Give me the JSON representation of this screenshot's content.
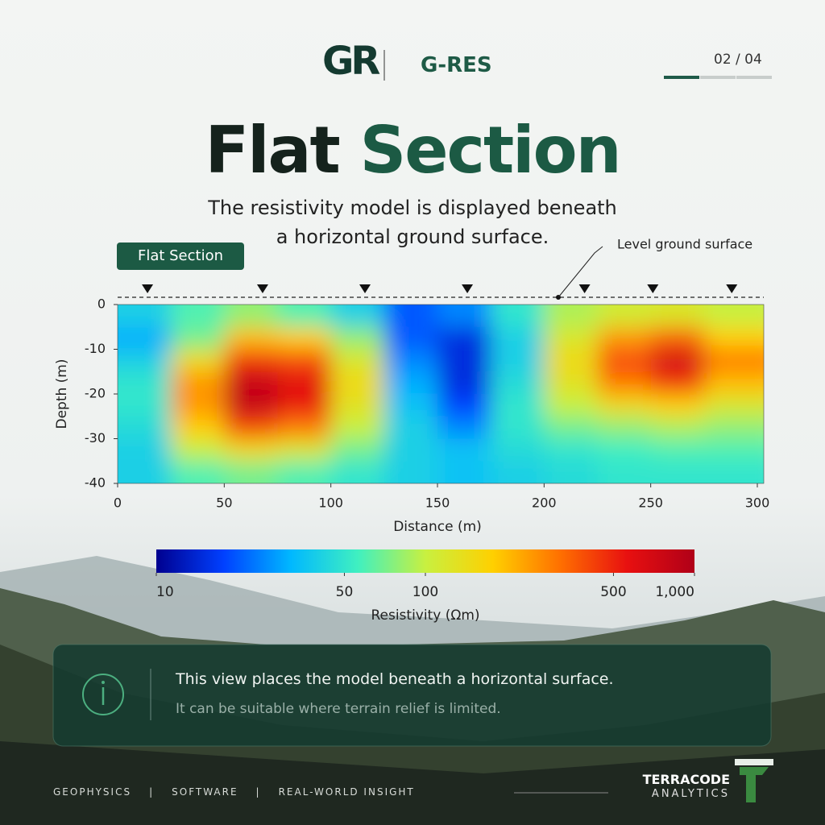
{
  "brand": {
    "logo_mark": "GR",
    "name": "G-RES"
  },
  "pager": "02 / 04",
  "header": {
    "title_dark": "Flat",
    "title_accent": "Section",
    "subtitle_lines": [
      "The resistivity model is displayed beneath",
      "a horizontal ground surface."
    ]
  },
  "badge": "Flat Section",
  "chart_data": {
    "type": "heatmap",
    "annotation": "Level ground surface",
    "x_label": "Distance (m)",
    "y_label": "Depth (m)",
    "xlim": [
      0,
      300
    ],
    "ylim": [
      -40,
      0
    ],
    "xticks": [
      0,
      50,
      100,
      150,
      200,
      250,
      300
    ],
    "yticks": [
      0,
      -10,
      -20,
      -30,
      -40
    ],
    "x": [
      12.5,
      37.5,
      62.5,
      87.5,
      112.5,
      137.5,
      162.5,
      187.5,
      212.5,
      237.5,
      262.5,
      287.5
    ],
    "y": [
      -2.5,
      -7.5,
      -12.5,
      -17.5,
      -22.5,
      -27.5,
      -32.5,
      -37.5
    ],
    "z": [
      [
        40,
        60,
        80,
        60,
        40,
        20,
        25,
        50,
        90,
        110,
        120,
        100
      ],
      [
        30,
        70,
        200,
        180,
        80,
        20,
        15,
        40,
        120,
        250,
        350,
        180
      ],
      [
        40,
        150,
        450,
        400,
        120,
        25,
        15,
        40,
        150,
        400,
        700,
        300
      ],
      [
        50,
        250,
        800,
        600,
        150,
        30,
        15,
        45,
        130,
        300,
        450,
        200
      ],
      [
        50,
        250,
        800,
        550,
        130,
        35,
        18,
        50,
        100,
        150,
        180,
        120
      ],
      [
        45,
        180,
        400,
        300,
        100,
        40,
        25,
        50,
        70,
        80,
        90,
        80
      ],
      [
        40,
        100,
        150,
        120,
        70,
        40,
        35,
        45,
        50,
        55,
        60,
        60
      ],
      [
        40,
        60,
        70,
        60,
        50,
        40,
        35,
        40,
        45,
        50,
        50,
        50
      ]
    ],
    "electrodes": [
      14,
      68,
      116,
      164,
      219,
      251,
      288
    ],
    "colorbar": {
      "label": "Resistivity (Ωm)",
      "lim": [
        10,
        1000
      ],
      "log": true,
      "ticks": [
        10,
        50,
        100,
        500,
        {
          "value": 1000,
          "label": "1,000"
        }
      ],
      "colors": [
        "#00008f",
        "#0040ff",
        "#00b8ff",
        "#40f0c0",
        "#c8f040",
        "#ffd000",
        "#ff7000",
        "#e81010",
        "#b00018"
      ]
    }
  },
  "info": {
    "line1": "This view places the model beneath a horizontal surface.",
    "line2": "It can be suitable where terrain relief is limited."
  },
  "footer": {
    "tags": [
      "GEOPHYSICS",
      "SOFTWARE",
      "REAL-WORLD INSIGHT"
    ],
    "company": "TERRACODE",
    "division": "ANALYTICS"
  }
}
